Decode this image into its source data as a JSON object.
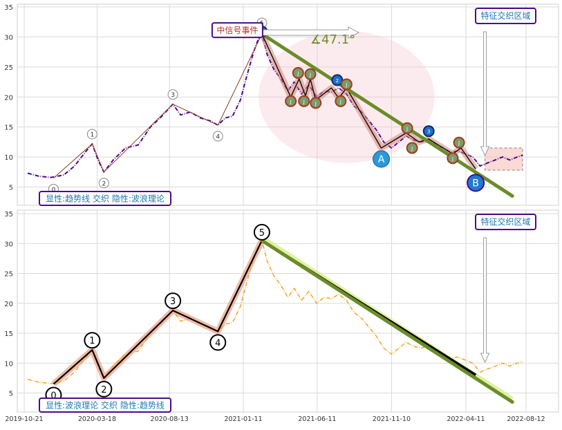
{
  "chart_data": [
    {
      "type": "line",
      "panel": "top",
      "title": "",
      "xlabel": "",
      "ylabel": "",
      "ylim": [
        2.5,
        35.5
      ],
      "yticks": [
        5,
        10,
        15,
        20,
        25,
        30,
        35
      ],
      "grid": true,
      "annotations": {
        "box_top_right": "特征交织区域",
        "box_bottom_left": "显性:趋势线 交织 隐性:波浪理论",
        "event_label": "中信号事件",
        "angle_label": "∡47.1°",
        "point_A": "A",
        "point_B": "B"
      },
      "wave_points": [
        {
          "label": "0",
          "date": "2019-12-20",
          "value": 6.5
        },
        {
          "label": "1",
          "date": "2020-03-08",
          "value": 12.2
        },
        {
          "label": "2",
          "date": "2020-04-01",
          "value": 7.5
        },
        {
          "label": "3",
          "date": "2020-08-20",
          "value": 18.8
        },
        {
          "label": "4",
          "date": "2020-11-20",
          "value": 15.3
        },
        {
          "label": "5",
          "date": "2021-02-18",
          "value": 30.5
        }
      ],
      "trendline": [
        {
          "date": "2021-02-18",
          "value": 30.5
        },
        {
          "date": "2022-07-15",
          "value": 3.5
        }
      ],
      "zigzag": [
        {
          "date": "2021-02-18",
          "value": 30.5
        },
        {
          "date": "2021-04-18",
          "value": 20.0
        },
        {
          "date": "2021-05-05",
          "value": 23.0
        },
        {
          "date": "2021-05-18",
          "value": 20.2
        },
        {
          "date": "2021-05-28",
          "value": 23.0
        },
        {
          "date": "2021-06-08",
          "value": 19.5
        },
        {
          "date": "2021-07-10",
          "value": 21.5
        },
        {
          "date": "2021-07-25",
          "value": 19.8
        },
        {
          "date": "2021-08-10",
          "value": 21.5
        },
        {
          "date": "2021-10-20",
          "value": 11.5
        },
        {
          "date": "2021-12-10",
          "value": 14.0
        },
        {
          "date": "2022-01-05",
          "value": 12.5
        },
        {
          "date": "2022-01-25",
          "value": 13.0
        },
        {
          "date": "2022-03-15",
          "value": 10.5
        },
        {
          "date": "2022-04-01",
          "value": 11.5
        },
        {
          "date": "2022-05-01",
          "value": 8.0
        }
      ],
      "markers": [
        {
          "label": "1",
          "date": "2021-02-18",
          "value": 30.9,
          "color": "#1f6fc6"
        },
        {
          "label": "J",
          "date": "2021-04-18",
          "value": 19.3,
          "color": "#7c9a6a"
        },
        {
          "label": "J",
          "date": "2021-05-03",
          "value": 24.0,
          "color": "#7c9a6a"
        },
        {
          "label": "J",
          "date": "2021-05-15",
          "value": 19.3,
          "color": "#7c9a6a"
        },
        {
          "label": "J",
          "date": "2021-05-28",
          "value": 23.8,
          "color": "#7c9a6a"
        },
        {
          "label": "J",
          "date": "2021-06-08",
          "value": 19.0,
          "color": "#7c9a6a"
        },
        {
          "label": "2",
          "date": "2021-07-22",
          "value": 22.8,
          "color": "#1f6fc6"
        },
        {
          "label": "J",
          "date": "2021-07-29",
          "value": 19.3,
          "color": "#7c9a6a"
        },
        {
          "label": "J",
          "date": "2021-08-10",
          "value": 22.1,
          "color": "#7c9a6a"
        },
        {
          "label": "J",
          "date": "2021-12-12",
          "value": 14.8,
          "color": "#7c9a6a"
        },
        {
          "label": "J",
          "date": "2021-12-22",
          "value": 11.5,
          "color": "#7c9a6a"
        },
        {
          "label": "3",
          "date": "2022-01-25",
          "value": 14.3,
          "color": "#1f6fc6"
        },
        {
          "label": "J",
          "date": "2022-03-15",
          "value": 9.8,
          "color": "#7c9a6a"
        },
        {
          "label": "J",
          "date": "2022-03-28",
          "value": 12.4,
          "color": "#7c9a6a"
        }
      ],
      "highlight_ellipse": {
        "center_date": "2021-08-10",
        "center_value": 20.0,
        "rx_days": 180,
        "ry_value": 11.0
      },
      "highlight_box": {
        "from": "2022-05-20",
        "to": "2022-08-05",
        "low": 7.8,
        "high": 11.5
      },
      "series": [
        {
          "color": "#4b0a8a",
          "x": [
            "2019-10-28",
            "2019-11-20",
            "2019-12-15",
            "2020-01-10",
            "2020-02-01",
            "2020-02-20",
            "2020-03-08",
            "2020-03-20",
            "2020-04-01",
            "2020-04-20",
            "2020-05-15",
            "2020-06-10",
            "2020-07-05",
            "2020-07-25",
            "2020-08-20",
            "2020-09-05",
            "2020-09-25",
            "2020-10-15",
            "2020-11-05",
            "2020-11-20",
            "2020-12-05",
            "2020-12-20",
            "2021-01-05",
            "2021-01-18",
            "2021-02-01",
            "2021-02-10",
            "2021-02-18",
            "2021-03-01",
            "2021-03-15",
            "2021-03-29",
            "2021-04-12",
            "2021-04-25",
            "2021-05-10",
            "2021-05-25",
            "2021-06-10",
            "2021-06-25",
            "2021-07-10",
            "2021-07-25",
            "2021-08-10",
            "2021-08-25",
            "2021-09-10",
            "2021-09-25",
            "2021-10-10",
            "2021-10-25",
            "2021-11-10",
            "2021-11-25",
            "2021-12-10",
            "2021-12-25",
            "2022-01-10",
            "2022-01-25",
            "2022-02-10",
            "2022-02-25",
            "2022-03-10",
            "2022-03-25",
            "2022-04-10",
            "2022-04-25",
            "2022-05-10",
            "2022-05-25",
            "2022-06-10",
            "2022-06-25",
            "2022-07-10",
            "2022-07-25",
            "2022-08-05"
          ],
          "values": [
            7.3,
            6.8,
            6.6,
            7.0,
            8.5,
            10.5,
            12.2,
            9.5,
            7.5,
            9.5,
            11.5,
            12.0,
            15.0,
            16.5,
            18.8,
            17.0,
            17.5,
            16.5,
            16.0,
            15.3,
            16.5,
            16.8,
            19.5,
            23.5,
            27.5,
            29.5,
            30.5,
            27.0,
            24.5,
            23.0,
            21.0,
            22.5,
            20.5,
            22.0,
            20.0,
            21.0,
            20.8,
            21.5,
            20.5,
            18.5,
            17.5,
            16.0,
            14.5,
            12.5,
            11.5,
            12.5,
            13.5,
            12.8,
            12.5,
            13.0,
            12.0,
            11.5,
            10.8,
            11.0,
            10.5,
            10.0,
            8.5,
            9.0,
            9.5,
            10.0,
            9.5,
            10.0,
            10.3
          ]
        }
      ]
    },
    {
      "type": "line",
      "panel": "bottom",
      "title": "",
      "xlabel": "",
      "ylabel": "",
      "ylim": [
        2.5,
        35.5
      ],
      "yticks": [
        5,
        10,
        15,
        20,
        25,
        30,
        35
      ],
      "xticks": [
        "2019-10-21",
        "2020-03-18",
        "2020-08-13",
        "2021-01-11",
        "2021-06-11",
        "2021-11-10",
        "2022-04-11",
        "2022-08-12"
      ],
      "grid": true,
      "annotations": {
        "box_top_right": "特征交织区域",
        "box_bottom_left": "显性:波浪理论 交织 隐性:趋势线"
      },
      "wave_points": [
        {
          "label": "0",
          "date": "2019-12-20",
          "value": 6.5
        },
        {
          "label": "1",
          "date": "2020-03-08",
          "value": 12.2
        },
        {
          "label": "2",
          "date": "2020-04-01",
          "value": 7.5
        },
        {
          "label": "3",
          "date": "2020-08-20",
          "value": 18.8
        },
        {
          "label": "4",
          "date": "2020-11-20",
          "value": 15.3
        },
        {
          "label": "5",
          "date": "2021-02-18",
          "value": 30.5
        }
      ],
      "trendline": [
        {
          "date": "2021-02-18",
          "value": 30.5
        },
        {
          "date": "2022-07-15",
          "value": 3.5
        }
      ],
      "series": [
        {
          "color": "#f0a830",
          "x": [
            "2019-10-28",
            "2019-11-20",
            "2019-12-15",
            "2020-01-10",
            "2020-02-01",
            "2020-02-20",
            "2020-03-08",
            "2020-03-20",
            "2020-04-01",
            "2020-04-20",
            "2020-05-15",
            "2020-06-10",
            "2020-07-05",
            "2020-07-25",
            "2020-08-20",
            "2020-09-05",
            "2020-09-25",
            "2020-10-15",
            "2020-11-05",
            "2020-11-20",
            "2020-12-05",
            "2020-12-20",
            "2021-01-05",
            "2021-01-18",
            "2021-02-01",
            "2021-02-10",
            "2021-02-18",
            "2021-03-01",
            "2021-03-15",
            "2021-03-29",
            "2021-04-12",
            "2021-04-25",
            "2021-05-10",
            "2021-05-25",
            "2021-06-10",
            "2021-06-25",
            "2021-07-10",
            "2021-07-25",
            "2021-08-10",
            "2021-08-25",
            "2021-09-10",
            "2021-09-25",
            "2021-10-10",
            "2021-10-25",
            "2021-11-10",
            "2021-11-25",
            "2021-12-10",
            "2021-12-25",
            "2022-01-10",
            "2022-01-25",
            "2022-02-10",
            "2022-02-25",
            "2022-03-10",
            "2022-03-25",
            "2022-04-10",
            "2022-04-25",
            "2022-05-10",
            "2022-05-25",
            "2022-06-10",
            "2022-06-25",
            "2022-07-10",
            "2022-07-25",
            "2022-08-05"
          ],
          "values": [
            7.3,
            6.8,
            6.6,
            7.0,
            8.5,
            10.5,
            12.2,
            9.5,
            7.5,
            9.5,
            11.5,
            12.0,
            15.0,
            16.5,
            18.8,
            17.0,
            17.5,
            16.5,
            16.0,
            15.3,
            16.5,
            16.8,
            19.5,
            23.5,
            27.5,
            29.5,
            30.5,
            27.0,
            24.5,
            23.0,
            21.0,
            22.5,
            20.5,
            22.0,
            20.0,
            21.0,
            20.8,
            21.5,
            20.5,
            18.5,
            17.5,
            16.0,
            14.5,
            12.5,
            11.5,
            12.5,
            13.5,
            12.8,
            12.5,
            13.0,
            12.0,
            11.5,
            10.8,
            11.0,
            10.5,
            10.0,
            8.5,
            9.0,
            9.5,
            10.0,
            9.5,
            10.0,
            10.3
          ]
        }
      ]
    }
  ]
}
